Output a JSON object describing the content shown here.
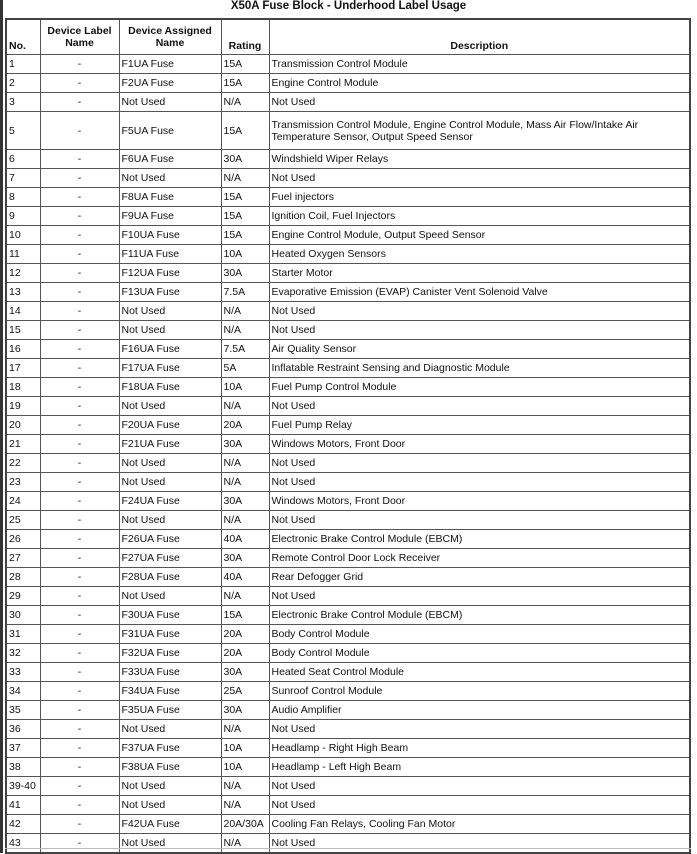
{
  "title": "X50A Fuse Block - Underhood Label Usage",
  "headers": {
    "no": "No.",
    "label": "Device Label Name",
    "assigned": "Device Assigned Name",
    "rating": "Rating",
    "description": "Description"
  },
  "rows": [
    {
      "no": "1",
      "label": "-",
      "assigned": "F1UA Fuse",
      "rating": "15A",
      "description": "Transmission Control Module"
    },
    {
      "no": "2",
      "label": "-",
      "assigned": "F2UA Fuse",
      "rating": "15A",
      "description": "Engine Control Module"
    },
    {
      "no": "3",
      "label": "-",
      "assigned": "Not Used",
      "rating": "N/A",
      "description": "Not Used"
    },
    {
      "no": "5",
      "label": "-",
      "assigned": "F5UA Fuse",
      "rating": "15A",
      "description": "Transmission Control Module, Engine Control Module, Mass Air Flow/Intake Air Temperature Sensor, Output Speed Sensor"
    },
    {
      "no": "6",
      "label": "-",
      "assigned": "F6UA Fuse",
      "rating": "30A",
      "description": "Windshield Wiper Relays"
    },
    {
      "no": "7",
      "label": "-",
      "assigned": "Not Used",
      "rating": "N/A",
      "description": "Not Used"
    },
    {
      "no": "8",
      "label": "-",
      "assigned": "F8UA Fuse",
      "rating": "15A",
      "description": "Fuel injectors"
    },
    {
      "no": "9",
      "label": "-",
      "assigned": "F9UA Fuse",
      "rating": "15A",
      "description": "Ignition Coil, Fuel Injectors"
    },
    {
      "no": "10",
      "label": "-",
      "assigned": "F10UA Fuse",
      "rating": "15A",
      "description": "Engine Control Module, Output Speed Sensor"
    },
    {
      "no": "11",
      "label": "-",
      "assigned": "F11UA Fuse",
      "rating": "10A",
      "description": "Heated Oxygen Sensors"
    },
    {
      "no": "12",
      "label": "-",
      "assigned": "F12UA Fuse",
      "rating": "30A",
      "description": "Starter Motor"
    },
    {
      "no": "13",
      "label": "-",
      "assigned": "F13UA Fuse",
      "rating": "7.5A",
      "description": "Evaporative Emission (EVAP) Canister Vent Solenoid Valve"
    },
    {
      "no": "14",
      "label": "-",
      "assigned": "Not Used",
      "rating": "N/A",
      "description": "Not Used"
    },
    {
      "no": "15",
      "label": "-",
      "assigned": "Not Used",
      "rating": "N/A",
      "description": "Not Used"
    },
    {
      "no": "16",
      "label": "-",
      "assigned": "F16UA Fuse",
      "rating": "7.5A",
      "description": "Air Quality Sensor"
    },
    {
      "no": "17",
      "label": "-",
      "assigned": "F17UA Fuse",
      "rating": "5A",
      "description": "Inflatable Restraint Sensing and Diagnostic Module"
    },
    {
      "no": "18",
      "label": "-",
      "assigned": "F18UA Fuse",
      "rating": "10A",
      "description": "Fuel Pump Control Module"
    },
    {
      "no": "19",
      "label": "-",
      "assigned": "Not Used",
      "rating": "N/A",
      "description": "Not Used"
    },
    {
      "no": "20",
      "label": "-",
      "assigned": "F20UA Fuse",
      "rating": "20A",
      "description": "Fuel Pump Relay"
    },
    {
      "no": "21",
      "label": "-",
      "assigned": "F21UA Fuse",
      "rating": "30A",
      "description": "Windows Motors, Front Door"
    },
    {
      "no": "22",
      "label": "-",
      "assigned": "Not Used",
      "rating": "N/A",
      "description": "Not Used"
    },
    {
      "no": "23",
      "label": "-",
      "assigned": "Not Used",
      "rating": "N/A",
      "description": "Not Used"
    },
    {
      "no": "24",
      "label": "-",
      "assigned": "F24UA Fuse",
      "rating": "30A",
      "description": "Windows Motors, Front Door"
    },
    {
      "no": "25",
      "label": "-",
      "assigned": "Not Used",
      "rating": "N/A",
      "description": "Not Used"
    },
    {
      "no": "26",
      "label": "-",
      "assigned": "F26UA Fuse",
      "rating": "40A",
      "description": "Electronic Brake Control Module (EBCM)"
    },
    {
      "no": "27",
      "label": "-",
      "assigned": "F27UA Fuse",
      "rating": "30A",
      "description": "Remote Control Door Lock Receiver"
    },
    {
      "no": "28",
      "label": "-",
      "assigned": "F28UA Fuse",
      "rating": "40A",
      "description": "Rear Defogger Grid"
    },
    {
      "no": "29",
      "label": "-",
      "assigned": "Not Used",
      "rating": "N/A",
      "description": "Not Used"
    },
    {
      "no": "30",
      "label": "-",
      "assigned": "F30UA Fuse",
      "rating": "15A",
      "description": "Electronic Brake Control Module (EBCM)"
    },
    {
      "no": "31",
      "label": "-",
      "assigned": "F31UA Fuse",
      "rating": "20A",
      "description": "Body Control Module"
    },
    {
      "no": "32",
      "label": "-",
      "assigned": "F32UA Fuse",
      "rating": "20A",
      "description": "Body Control Module"
    },
    {
      "no": "33",
      "label": "-",
      "assigned": "F33UA Fuse",
      "rating": "30A",
      "description": "Heated Seat Control Module"
    },
    {
      "no": "34",
      "label": "-",
      "assigned": "F34UA Fuse",
      "rating": "25A",
      "description": "Sunroof Control Module"
    },
    {
      "no": "35",
      "label": "-",
      "assigned": "F35UA Fuse",
      "rating": "30A",
      "description": "Audio Amplifier"
    },
    {
      "no": "36",
      "label": "-",
      "assigned": "Not Used",
      "rating": "N/A",
      "description": "Not Used"
    },
    {
      "no": "37",
      "label": "-",
      "assigned": "F37UA Fuse",
      "rating": "10A",
      "description": "Headlamp - Right High Beam"
    },
    {
      "no": "38",
      "label": "-",
      "assigned": "F38UA Fuse",
      "rating": "10A",
      "description": "Headlamp - Left High Beam"
    },
    {
      "no": "39-40",
      "label": "-",
      "assigned": "Not Used",
      "rating": "N/A",
      "description": "Not Used"
    },
    {
      "no": "41",
      "label": "-",
      "assigned": "Not Used",
      "rating": "N/A",
      "description": "Not Used"
    },
    {
      "no": "42",
      "label": "-",
      "assigned": "F42UA Fuse",
      "rating": "20A/30A",
      "description": "Cooling Fan Relays, Cooling Fan Motor"
    },
    {
      "no": "43",
      "label": "-",
      "assigned": "Not Used",
      "rating": "N/A",
      "description": "Not Used"
    }
  ]
}
